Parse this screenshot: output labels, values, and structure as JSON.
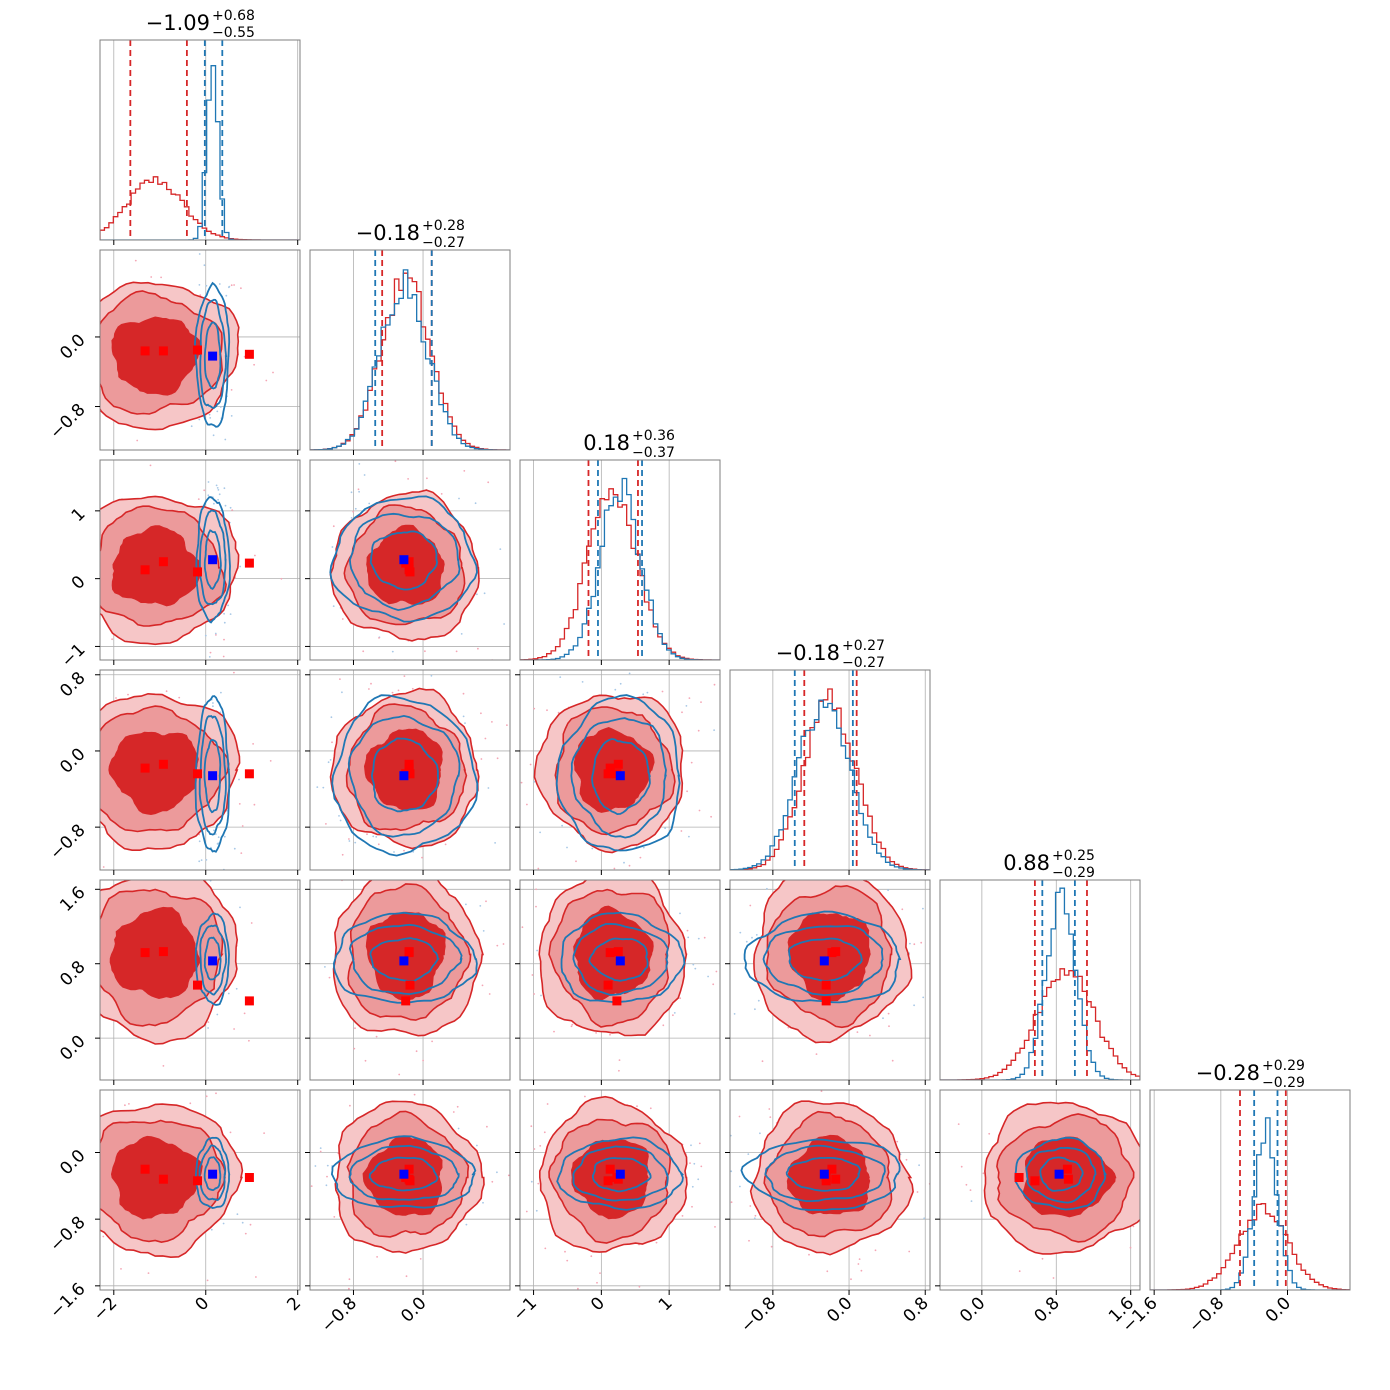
{
  "chart_data": {
    "type": "corner",
    "n_params": 6,
    "colors": {
      "red": "#d62728",
      "blue": "#1f77b4",
      "marker_blue": "#0000ff",
      "marker_red": "#ff0000"
    },
    "grid": true,
    "titles": [
      {
        "main": "−1.09",
        "plus": "+0.68",
        "minus": "−0.55"
      },
      {
        "main": "−0.18",
        "plus": "+0.28",
        "minus": "−0.27"
      },
      {
        "main": "0.18",
        "plus": "+0.36",
        "minus": "−0.37"
      },
      {
        "main": "−0.18",
        "plus": "+0.27",
        "minus": "−0.27"
      },
      {
        "main": "0.88",
        "plus": "+0.25",
        "minus": "−0.29"
      },
      {
        "main": "−0.28",
        "plus": "+0.29",
        "minus": "−0.29"
      }
    ],
    "ranges": [
      [
        -2.3,
        2.05
      ],
      [
        -1.3,
        1.0
      ],
      [
        -1.2,
        1.75
      ],
      [
        -1.25,
        0.85
      ],
      [
        -0.45,
        1.7
      ],
      [
        -1.65,
        0.75
      ]
    ],
    "ticks": [
      {
        "values": [
          -2,
          0,
          2
        ],
        "labels": [
          "−2",
          "0",
          "2"
        ]
      },
      {
        "values": [
          -0.8,
          0.0
        ],
        "labels": [
          "−0.8",
          "0.0"
        ]
      },
      {
        "values": [
          -1,
          0,
          1
        ],
        "labels": [
          "−1",
          "0",
          "1"
        ]
      },
      {
        "values": [
          -0.8,
          0.0,
          0.8
        ],
        "labels": [
          "−0.8",
          "0.0",
          "0.8"
        ]
      },
      {
        "values": [
          0.0,
          0.8,
          1.6
        ],
        "labels": [
          "0.0",
          "0.8",
          "1.6"
        ]
      },
      {
        "values": [
          -1.6,
          -0.8,
          0.0
        ],
        "labels": [
          "−1.6",
          "−0.8",
          "0.0"
        ]
      }
    ],
    "red_posterior": {
      "mean": [
        -1.1,
        -0.2,
        0.16,
        -0.2,
        0.9,
        -0.3
      ],
      "sigma": [
        0.6,
        0.28,
        0.36,
        0.27,
        0.3,
        0.3
      ],
      "quantiles": [
        [
          -1.64,
          -0.41
        ],
        [
          -0.47,
          0.1
        ],
        [
          -0.19,
          0.54
        ],
        [
          -0.47,
          0.08
        ],
        [
          0.57,
          1.13
        ],
        [
          -0.57,
          -0.02
        ]
      ]
    },
    "blue_posterior": {
      "mean": [
        0.15,
        -0.22,
        0.28,
        -0.26,
        0.85,
        -0.26
      ],
      "sigma": [
        0.12,
        0.27,
        0.3,
        0.27,
        0.16,
        0.14
      ],
      "quantiles": [
        [
          -0.02,
          0.36
        ],
        [
          -0.55,
          0.1
        ],
        [
          -0.05,
          0.6
        ],
        [
          -0.57,
          0.04
        ],
        [
          0.65,
          1.0
        ],
        [
          -0.4,
          -0.12
        ]
      ]
    },
    "blue_marker": [
      0.15,
      -0.22,
      0.28,
      -0.26,
      0.83,
      -0.26
    ],
    "red_markers": [
      [
        -1.32,
        -0.16,
        0.13,
        -0.18,
        0.92,
        -0.2
      ],
      [
        -0.92,
        -0.16,
        0.25,
        -0.14,
        0.93,
        -0.32
      ],
      [
        -0.18,
        -0.15,
        0.1,
        -0.24,
        0.57,
        -0.34
      ],
      [
        0.95,
        -0.2,
        0.23,
        -0.24,
        0.4,
        -0.3
      ]
    ]
  }
}
